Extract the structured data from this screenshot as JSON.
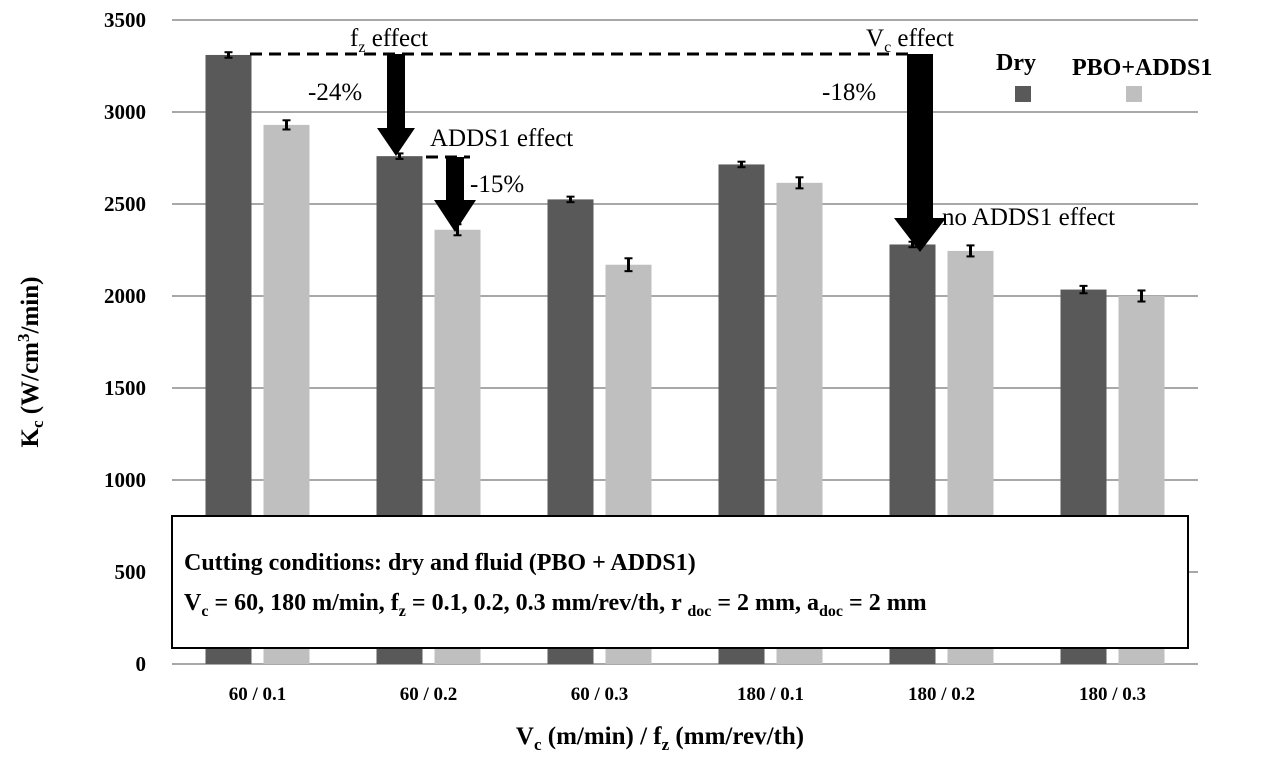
{
  "chart_data": {
    "type": "bar",
    "categories": [
      "60 / 0.1",
      "60 / 0.2",
      "60 / 0.3",
      "180 / 0.1",
      "180 / 0.2",
      "180 / 0.3"
    ],
    "series": [
      {
        "name": "Dry",
        "values": [
          3310,
          2760,
          2525,
          2715,
          2280,
          2035
        ],
        "errors": [
          15,
          15,
          15,
          15,
          15,
          20
        ],
        "color": "#595959"
      },
      {
        "name": "PBO+ADDS1",
        "values": [
          2930,
          2360,
          2170,
          2615,
          2245,
          2000
        ],
        "errors": [
          25,
          30,
          35,
          30,
          30,
          30
        ],
        "color": "#bfbfbf"
      }
    ],
    "ylim": [
      0,
      3500
    ],
    "yticks": [
      0,
      500,
      1000,
      1500,
      2000,
      2500,
      3000,
      3500
    ],
    "grid": true,
    "legend_position": "top-right",
    "ylabel": {
      "main": "K",
      "sub": "c",
      "rest1": " (W/cm",
      "sup": "3",
      "rest2": "/min)"
    },
    "xlabel": {
      "p1": "V",
      "s1": "c",
      "p2": " (m/min) / f",
      "s2": "z",
      "p3": " (mm/rev/th)"
    },
    "annotations": {
      "fz_effect": {
        "main": "f",
        "sub": "z",
        "rest": " effect"
      },
      "fz_pct": "-24%",
      "vc_effect": {
        "main": "V",
        "sub": "c",
        "rest": " effect"
      },
      "vc_pct": "-18%",
      "adds_effect": "ADDS1  effect",
      "adds_pct": "-15%",
      "no_adds": "no ADDS1  effect"
    },
    "conditions": {
      "line1": "Cutting conditions: dry and fluid  (PBO + ADDS1)",
      "line2": [
        {
          "t": "V"
        },
        {
          "t": "c",
          "sub": true
        },
        {
          "t": " = 60, 180 m/min, f"
        },
        {
          "t": "z",
          "sub": true
        },
        {
          "t": " = 0.1, 0.2, 0.3  mm/rev/th, r "
        },
        {
          "t": "doc",
          "sub": true
        },
        {
          "t": " = 2 mm, a"
        },
        {
          "t": "doc",
          "sub": true
        },
        {
          "t": " = 2 mm"
        }
      ]
    }
  }
}
